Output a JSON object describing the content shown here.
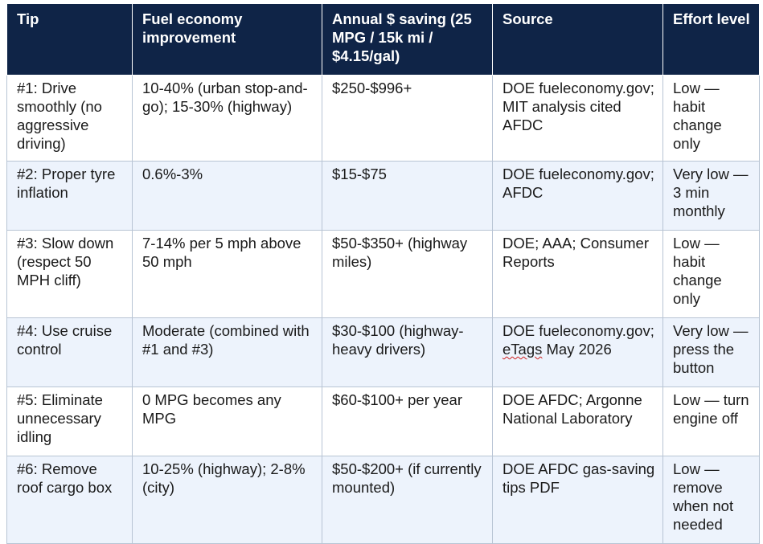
{
  "headers": [
    "Tip",
    "Fuel economy improvement",
    "Annual $ saving (25 MPG / 15k mi / $4.15/gal)",
    "Source",
    "Effort level"
  ],
  "rows": [
    {
      "tip": "#1: Drive smoothly (no aggressive driving)",
      "improvement": "10-40% (urban stop-and-go); 15-30% (highway)",
      "saving": "$250-$996+",
      "source": "DOE fueleconomy.gov; MIT analysis cited AFDC",
      "effort": "Low — habit change only"
    },
    {
      "tip": "#2: Proper tyre inflation",
      "improvement": "0.6%-3%",
      "saving": "$15-$75",
      "source": "DOE fueleconomy.gov; AFDC",
      "effort": "Very low — 3 min monthly"
    },
    {
      "tip": "#3: Slow down (respect 50 MPH cliff)",
      "improvement": "7-14% per 5 mph above 50 mph",
      "saving": "$50-$350+ (highway miles)",
      "source": "DOE; AAA; Consumer Reports",
      "effort": "Low — habit change only"
    },
    {
      "tip": "#4: Use cruise control",
      "improvement": "Moderate (combined with #1 and #3)",
      "saving": "$30-$100 (highway-heavy drivers)",
      "source_main": "DOE fueleconomy.gov;",
      "source_flagged": "eTags",
      "source_tail": " May 2026",
      "effort": "Very low — press the button"
    },
    {
      "tip": "#5: Eliminate unnecessary idling",
      "improvement": "0 MPG becomes any MPG",
      "saving": "$60-$100+ per year",
      "source": "DOE AFDC; Argonne National Laboratory",
      "effort": "Low — turn engine off"
    },
    {
      "tip": "#6: Remove roof cargo box",
      "improvement": "10-25% (highway); 2-8% (city)",
      "saving": "$50-$200+ (if currently mounted)",
      "source": "DOE AFDC gas-saving tips PDF",
      "effort": "Low — remove when not needed"
    }
  ],
  "colors": {
    "header_bg": "#0f2447",
    "header_text": "#ffffff",
    "row_alt_bg": "#edf3fc",
    "border": "#b8c4d4"
  }
}
